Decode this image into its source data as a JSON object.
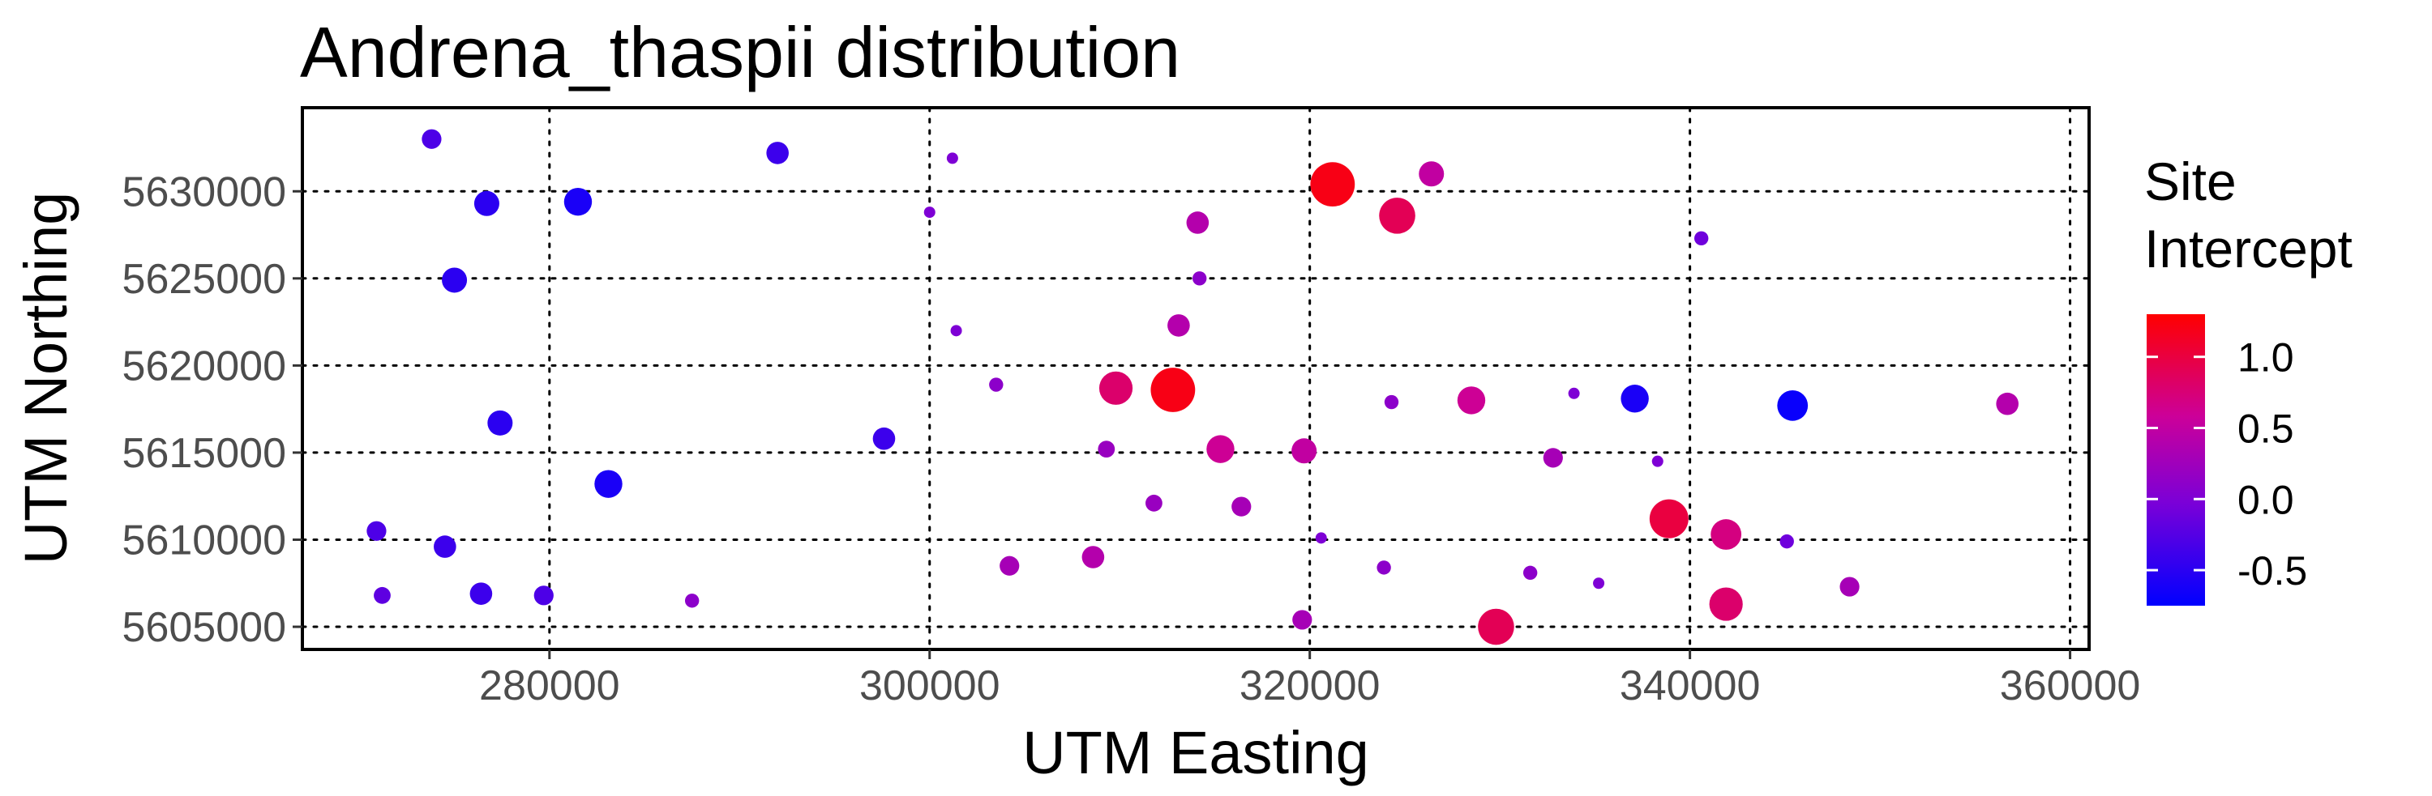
{
  "chart_data": {
    "type": "scatter",
    "title": "Andrena_thaspii distribution",
    "xlabel": "UTM Easting",
    "ylabel": "UTM Northing",
    "xlim": [
      267000,
      361000
    ],
    "ylim": [
      5603700,
      5634800
    ],
    "x_ticks": [
      280000,
      300000,
      320000,
      340000,
      360000
    ],
    "x_tick_labels": [
      "280000",
      "300000",
      "320000",
      "340000",
      "360000"
    ],
    "y_ticks": [
      5605000,
      5610000,
      5615000,
      5620000,
      5625000,
      5630000
    ],
    "y_tick_labels": [
      "5605000",
      "5610000",
      "5615000",
      "5620000",
      "5625000",
      "5630000"
    ],
    "grid": true,
    "legend": {
      "title_lines": [
        "Site",
        "Intercept"
      ],
      "position": "right",
      "range": [
        -0.75,
        1.3
      ],
      "ticks": [
        1.0,
        0.5,
        0.0,
        -0.5
      ],
      "tick_labels": [
        "1.0",
        "0.5",
        "0.0",
        "-0.5"
      ],
      "color_low": "#0000FF",
      "color_high": "#FF0000"
    },
    "points": [
      {
        "x": 273800,
        "y": 5633000,
        "v": -0.3
      },
      {
        "x": 276700,
        "y": 5629300,
        "v": -0.5
      },
      {
        "x": 281500,
        "y": 5629400,
        "v": -0.6
      },
      {
        "x": 292000,
        "y": 5632200,
        "v": -0.4
      },
      {
        "x": 301200,
        "y": 5631900,
        "v": 0.0
      },
      {
        "x": 321200,
        "y": 5630400,
        "v": 1.2
      },
      {
        "x": 326400,
        "y": 5631000,
        "v": 0.5
      },
      {
        "x": 300000,
        "y": 5628800,
        "v": 0.0
      },
      {
        "x": 314100,
        "y": 5628200,
        "v": 0.4
      },
      {
        "x": 324600,
        "y": 5628600,
        "v": 0.9
      },
      {
        "x": 340600,
        "y": 5627300,
        "v": -0.1
      },
      {
        "x": 275000,
        "y": 5624900,
        "v": -0.5
      },
      {
        "x": 314200,
        "y": 5625000,
        "v": 0.1
      },
      {
        "x": 301400,
        "y": 5622000,
        "v": 0.0
      },
      {
        "x": 313100,
        "y": 5622300,
        "v": 0.4
      },
      {
        "x": 303500,
        "y": 5618900,
        "v": 0.1
      },
      {
        "x": 309800,
        "y": 5618700,
        "v": 0.8
      },
      {
        "x": 312800,
        "y": 5618600,
        "v": 1.2
      },
      {
        "x": 324300,
        "y": 5617900,
        "v": 0.1
      },
      {
        "x": 328500,
        "y": 5618000,
        "v": 0.6
      },
      {
        "x": 333900,
        "y": 5618400,
        "v": 0.0
      },
      {
        "x": 337100,
        "y": 5618100,
        "v": -0.6
      },
      {
        "x": 345400,
        "y": 5617700,
        "v": -0.7
      },
      {
        "x": 356700,
        "y": 5617800,
        "v": 0.4
      },
      {
        "x": 277400,
        "y": 5616700,
        "v": -0.5
      },
      {
        "x": 297600,
        "y": 5615800,
        "v": -0.4
      },
      {
        "x": 309300,
        "y": 5615200,
        "v": 0.2
      },
      {
        "x": 315300,
        "y": 5615200,
        "v": 0.6
      },
      {
        "x": 319700,
        "y": 5615100,
        "v": 0.5
      },
      {
        "x": 332800,
        "y": 5614700,
        "v": 0.3
      },
      {
        "x": 338300,
        "y": 5614500,
        "v": 0.0
      },
      {
        "x": 283100,
        "y": 5613200,
        "v": -0.6
      },
      {
        "x": 311800,
        "y": 5612100,
        "v": 0.2
      },
      {
        "x": 316400,
        "y": 5611900,
        "v": 0.3
      },
      {
        "x": 338900,
        "y": 5611200,
        "v": 1.0
      },
      {
        "x": 341900,
        "y": 5610300,
        "v": 0.7
      },
      {
        "x": 320600,
        "y": 5610100,
        "v": 0.0
      },
      {
        "x": 345100,
        "y": 5609900,
        "v": -0.1
      },
      {
        "x": 270900,
        "y": 5610500,
        "v": -0.3
      },
      {
        "x": 274500,
        "y": 5609600,
        "v": -0.4
      },
      {
        "x": 304200,
        "y": 5608500,
        "v": 0.3
      },
      {
        "x": 308600,
        "y": 5609000,
        "v": 0.4
      },
      {
        "x": 323900,
        "y": 5608400,
        "v": 0.1
      },
      {
        "x": 331600,
        "y": 5608100,
        "v": 0.1
      },
      {
        "x": 335200,
        "y": 5607500,
        "v": 0.0
      },
      {
        "x": 348400,
        "y": 5607300,
        "v": 0.3
      },
      {
        "x": 271200,
        "y": 5606800,
        "v": -0.2
      },
      {
        "x": 276400,
        "y": 5606900,
        "v": -0.4
      },
      {
        "x": 279700,
        "y": 5606800,
        "v": -0.3
      },
      {
        "x": 287500,
        "y": 5606500,
        "v": 0.1
      },
      {
        "x": 341900,
        "y": 5606300,
        "v": 0.8
      },
      {
        "x": 319600,
        "y": 5605400,
        "v": 0.3
      },
      {
        "x": 329800,
        "y": 5605000,
        "v": 0.9
      }
    ]
  }
}
